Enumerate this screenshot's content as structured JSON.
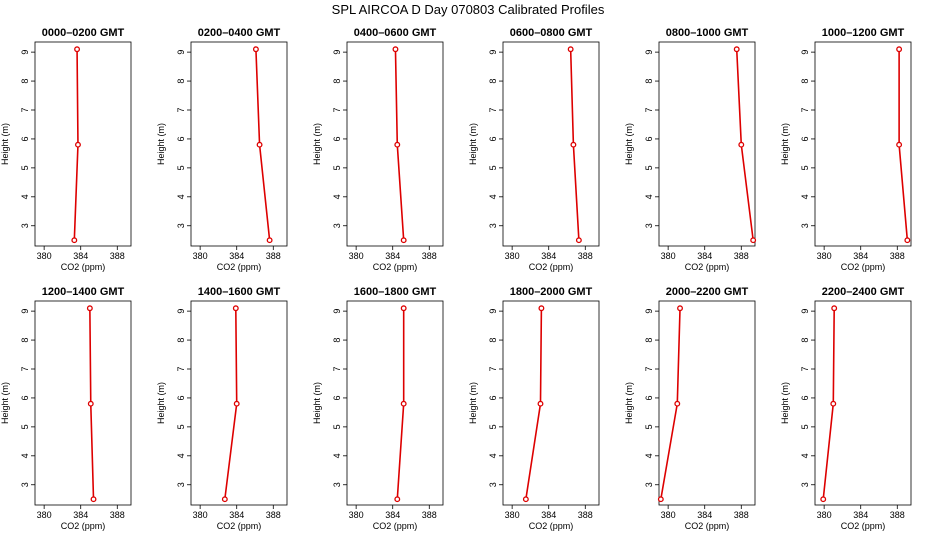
{
  "title": "SPL AIRCOA D  Day 070803  Calibrated Profiles",
  "colors": {
    "series": "#dd0000",
    "frame": "#000000"
  },
  "chart_data": [
    {
      "type": "line",
      "title": "0000–0200 GMT",
      "xlabel": "CO2 (ppm)",
      "ylabel": "Height (m)",
      "xlim": [
        379,
        389.5
      ],
      "ylim": [
        2.3,
        9.35
      ],
      "xticks": [
        380,
        384,
        388
      ],
      "yticks": [
        3,
        4,
        5,
        6,
        7,
        8,
        9
      ],
      "points": [
        {
          "x": 383.6,
          "y": 9.1
        },
        {
          "x": 383.7,
          "y": 5.8
        },
        {
          "x": 383.3,
          "y": 2.5
        }
      ]
    },
    {
      "type": "line",
      "title": "0200–0400 GMT",
      "xlabel": "CO2 (ppm)",
      "ylabel": "Height (m)",
      "xlim": [
        379,
        389.5
      ],
      "ylim": [
        2.3,
        9.35
      ],
      "xticks": [
        380,
        384,
        388
      ],
      "yticks": [
        3,
        4,
        5,
        6,
        7,
        8,
        9
      ],
      "points": [
        {
          "x": 386.1,
          "y": 9.1
        },
        {
          "x": 386.5,
          "y": 5.8
        },
        {
          "x": 387.6,
          "y": 2.5
        }
      ]
    },
    {
      "type": "line",
      "title": "0400–0600 GMT",
      "xlabel": "CO2 (ppm)",
      "ylabel": "Height (m)",
      "xlim": [
        379,
        389.5
      ],
      "ylim": [
        2.3,
        9.35
      ],
      "xticks": [
        380,
        384,
        388
      ],
      "yticks": [
        3,
        4,
        5,
        6,
        7,
        8,
        9
      ],
      "points": [
        {
          "x": 384.3,
          "y": 9.1
        },
        {
          "x": 384.5,
          "y": 5.8
        },
        {
          "x": 385.2,
          "y": 2.5
        }
      ]
    },
    {
      "type": "line",
      "title": "0600–0800 GMT",
      "xlabel": "CO2 (ppm)",
      "ylabel": "Height (m)",
      "xlim": [
        379,
        389.5
      ],
      "ylim": [
        2.3,
        9.35
      ],
      "xticks": [
        380,
        384,
        388
      ],
      "yticks": [
        3,
        4,
        5,
        6,
        7,
        8,
        9
      ],
      "points": [
        {
          "x": 386.4,
          "y": 9.1
        },
        {
          "x": 386.7,
          "y": 5.8
        },
        {
          "x": 387.3,
          "y": 2.5
        }
      ]
    },
    {
      "type": "line",
      "title": "0800–1000 GMT",
      "xlabel": "CO2 (ppm)",
      "ylabel": "Height (m)",
      "xlim": [
        379,
        389.5
      ],
      "ylim": [
        2.3,
        9.35
      ],
      "xticks": [
        380,
        384,
        388
      ],
      "yticks": [
        3,
        4,
        5,
        6,
        7,
        8,
        9
      ],
      "points": [
        {
          "x": 387.5,
          "y": 9.1
        },
        {
          "x": 388.0,
          "y": 5.8
        },
        {
          "x": 389.3,
          "y": 2.5
        }
      ]
    },
    {
      "type": "line",
      "title": "1000–1200 GMT",
      "xlabel": "CO2 (ppm)",
      "ylabel": "Height (m)",
      "xlim": [
        379,
        389.5
      ],
      "ylim": [
        2.3,
        9.35
      ],
      "xticks": [
        380,
        384,
        388
      ],
      "yticks": [
        3,
        4,
        5,
        6,
        7,
        8,
        9
      ],
      "points": [
        {
          "x": 388.2,
          "y": 9.1
        },
        {
          "x": 388.2,
          "y": 5.8
        },
        {
          "x": 389.1,
          "y": 2.5
        }
      ]
    },
    {
      "type": "line",
      "title": "1200–1400 GMT",
      "xlabel": "CO2 (ppm)",
      "ylabel": "Height (m)",
      "xlim": [
        379,
        389.5
      ],
      "ylim": [
        2.3,
        9.35
      ],
      "xticks": [
        380,
        384,
        388
      ],
      "yticks": [
        3,
        4,
        5,
        6,
        7,
        8,
        9
      ],
      "points": [
        {
          "x": 385.0,
          "y": 9.1
        },
        {
          "x": 385.1,
          "y": 5.8
        },
        {
          "x": 385.4,
          "y": 2.5
        }
      ]
    },
    {
      "type": "line",
      "title": "1400–1600 GMT",
      "xlabel": "CO2 (ppm)",
      "ylabel": "Height (m)",
      "xlim": [
        379,
        389.5
      ],
      "ylim": [
        2.3,
        9.35
      ],
      "xticks": [
        380,
        384,
        388
      ],
      "yticks": [
        3,
        4,
        5,
        6,
        7,
        8,
        9
      ],
      "points": [
        {
          "x": 383.9,
          "y": 9.1
        },
        {
          "x": 384.0,
          "y": 5.8
        },
        {
          "x": 382.7,
          "y": 2.5
        }
      ]
    },
    {
      "type": "line",
      "title": "1600–1800 GMT",
      "xlabel": "CO2 (ppm)",
      "ylabel": "Height (m)",
      "xlim": [
        379,
        389.5
      ],
      "ylim": [
        2.3,
        9.35
      ],
      "xticks": [
        380,
        384,
        388
      ],
      "yticks": [
        3,
        4,
        5,
        6,
        7,
        8,
        9
      ],
      "points": [
        {
          "x": 385.2,
          "y": 9.1
        },
        {
          "x": 385.2,
          "y": 5.8
        },
        {
          "x": 384.5,
          "y": 2.5
        }
      ]
    },
    {
      "type": "line",
      "title": "1800–2000 GMT",
      "xlabel": "CO2 (ppm)",
      "ylabel": "Height (m)",
      "xlim": [
        379,
        389.5
      ],
      "ylim": [
        2.3,
        9.35
      ],
      "xticks": [
        380,
        384,
        388
      ],
      "yticks": [
        3,
        4,
        5,
        6,
        7,
        8,
        9
      ],
      "points": [
        {
          "x": 383.2,
          "y": 9.1
        },
        {
          "x": 383.1,
          "y": 5.8
        },
        {
          "x": 381.5,
          "y": 2.5
        }
      ]
    },
    {
      "type": "line",
      "title": "2000–2200 GMT",
      "xlabel": "CO2 (ppm)",
      "ylabel": "Height (m)",
      "xlim": [
        379,
        389.5
      ],
      "ylim": [
        2.3,
        9.35
      ],
      "xticks": [
        380,
        384,
        388
      ],
      "yticks": [
        3,
        4,
        5,
        6,
        7,
        8,
        9
      ],
      "points": [
        {
          "x": 381.3,
          "y": 9.1
        },
        {
          "x": 381.0,
          "y": 5.8
        },
        {
          "x": 379.2,
          "y": 2.5
        }
      ]
    },
    {
      "type": "line",
      "title": "2200–2400 GMT",
      "xlabel": "CO2 (ppm)",
      "ylabel": "Height (m)",
      "xlim": [
        379,
        389.5
      ],
      "ylim": [
        2.3,
        9.35
      ],
      "xticks": [
        380,
        384,
        388
      ],
      "yticks": [
        3,
        4,
        5,
        6,
        7,
        8,
        9
      ],
      "points": [
        {
          "x": 381.1,
          "y": 9.1
        },
        {
          "x": 381.0,
          "y": 5.8
        },
        {
          "x": 379.9,
          "y": 2.5
        }
      ]
    }
  ]
}
